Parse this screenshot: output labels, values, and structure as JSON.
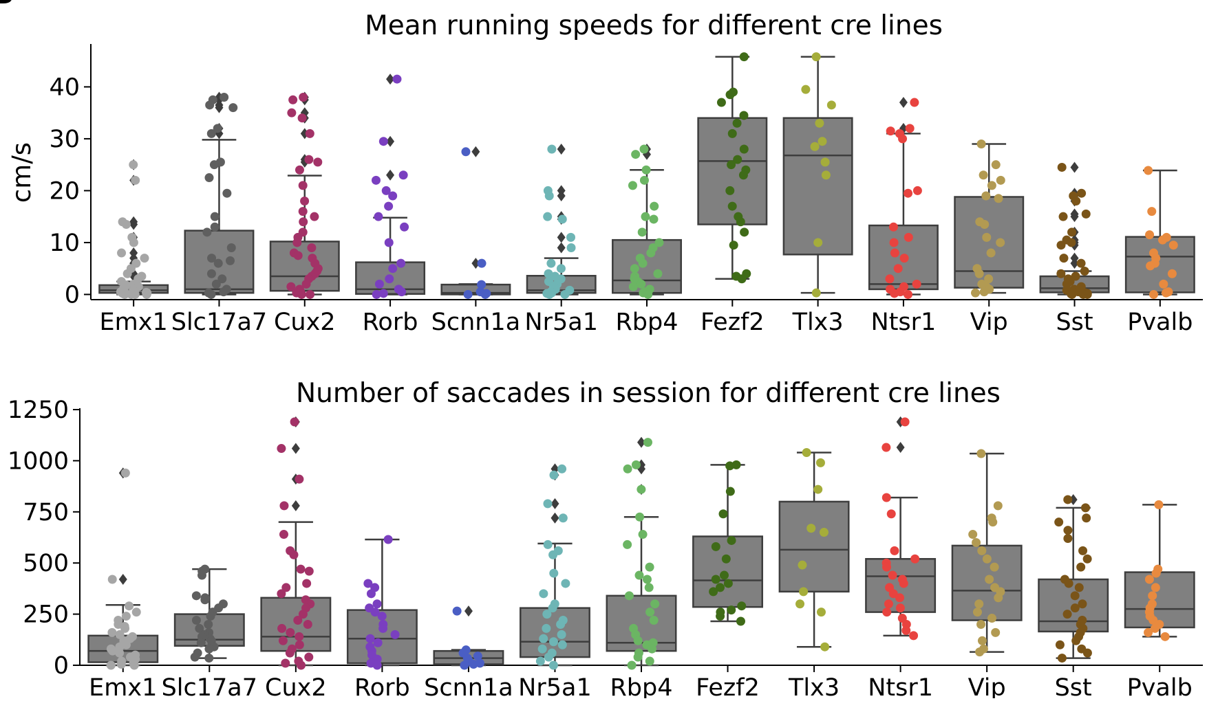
{
  "panel_label": "B",
  "colors": {
    "box_fill": "#808080",
    "box_edge": "#3d3d3d",
    "outlier": "#3d3d3d",
    "points": {
      "Emx1": "#a6a6a6",
      "Slc17a7": "#5f5f5f",
      "Cux2": "#a33267",
      "Rorb": "#7a3fc0",
      "Scnn1a": "#4a5ec4",
      "Nr5a1": "#6eb5b5",
      "Rbp4": "#6bb563",
      "Fezf2": "#3f6b18",
      "Tlx3": "#a5ad3a",
      "Ntsr1": "#e8433f",
      "Vip": "#b29a52",
      "Sst": "#7a5418",
      "Pvalb": "#e88a3f"
    }
  },
  "chart_data": [
    {
      "type": "box",
      "title": "Mean running speeds for different cre lines",
      "xlabel": "",
      "ylabel": "cm/s",
      "ylim": [
        -1,
        48
      ],
      "yticks": [
        0,
        10,
        20,
        30,
        40
      ],
      "categories": [
        "Emx1",
        "Slc17a7",
        "Cux2",
        "Rorb",
        "Scnn1a",
        "Nr5a1",
        "Rbp4",
        "Fezf2",
        "Tlx3",
        "Ntsr1",
        "Vip",
        "Sst",
        "Pvalb"
      ],
      "boxes": [
        {
          "name": "Emx1",
          "whislo": 0,
          "q1": 0.3,
          "med": 0.8,
          "q3": 1.8,
          "whishi": 2.5,
          "fliers": [
            25,
            22,
            14,
            13.5,
            11,
            8,
            7,
            6,
            4,
            3.5
          ],
          "points": [
            25,
            22,
            14,
            13.5,
            11,
            10,
            8,
            7,
            6,
            5,
            4,
            3.5,
            3,
            2.5,
            2,
            1.8,
            1.5,
            1.2,
            1,
            0.8,
            0.6,
            0.5,
            0.4,
            0.3,
            0.2,
            0.1,
            0,
            0,
            0,
            0
          ]
        },
        {
          "name": "Slc17a7",
          "whislo": 0,
          "q1": 0.3,
          "med": 1,
          "q3": 12.3,
          "whishi": 29.8,
          "fliers": [
            38,
            37.5,
            36.5,
            36,
            32,
            31
          ],
          "points": [
            38,
            37.5,
            36.5,
            36,
            32,
            31,
            25.5,
            25,
            22.5,
            19.5,
            15,
            13,
            12,
            9,
            7,
            6.5,
            6,
            4,
            3,
            2,
            1,
            0.5,
            0.3,
            0
          ]
        },
        {
          "name": "Cux2",
          "whislo": 0,
          "q1": 0.7,
          "med": 3.5,
          "q3": 10.2,
          "whishi": 22.9,
          "fliers": [
            38,
            37.5,
            35,
            34,
            31,
            26,
            25.5
          ],
          "points": [
            38,
            37.5,
            35,
            34,
            31,
            26,
            25.5,
            24,
            21,
            18,
            16,
            15,
            14,
            12,
            11,
            10,
            9,
            8,
            7.5,
            7,
            6,
            5,
            4.5,
            4,
            3.5,
            3,
            2,
            1.5,
            1,
            0.5,
            0.3,
            0,
            0
          ]
        },
        {
          "name": "Rorb",
          "whislo": 0,
          "q1": 0.1,
          "med": 1,
          "q3": 6.2,
          "whishi": 14.8,
          "fliers": [
            41.5,
            29.5,
            23
          ],
          "points": [
            41.5,
            29.5,
            23,
            22,
            20,
            19,
            17,
            15,
            13,
            10,
            6,
            5,
            3,
            2,
            1,
            0.5,
            0.2,
            0
          ]
        },
        {
          "name": "Scnn1a",
          "whislo": 0,
          "q1": 0,
          "med": 0.3,
          "q3": 1.9,
          "whishi": 2,
          "fliers": [
            27.5,
            6
          ],
          "points": [
            27.5,
            6,
            1.9,
            0.5,
            0.2,
            0,
            0
          ]
        },
        {
          "name": "Nr5a1",
          "whislo": 0,
          "q1": 0.3,
          "med": 0.8,
          "q3": 3.6,
          "whishi": 7,
          "fliers": [
            28,
            20,
            19,
            15,
            14.5,
            11,
            9
          ],
          "points": [
            28,
            20,
            19,
            15,
            14.5,
            11,
            9,
            6,
            5,
            4,
            3.5,
            3,
            2.5,
            2,
            1.5,
            1,
            0.8,
            0.5,
            0.3,
            0.2,
            0,
            0
          ]
        },
        {
          "name": "Rbp4",
          "whislo": 0,
          "q1": 0.3,
          "med": 2.7,
          "q3": 10.5,
          "whishi": 24,
          "fliers": [
            28,
            27
          ],
          "points": [
            28,
            27,
            24,
            22,
            21,
            17,
            15,
            14.5,
            12,
            10,
            9,
            8,
            7,
            6,
            5,
            4,
            3.5,
            3,
            2.5,
            2,
            1.5,
            1,
            0.5,
            0.3,
            0
          ]
        },
        {
          "name": "Fezf2",
          "whislo": 3,
          "q1": 13.5,
          "med": 25.7,
          "q3": 34,
          "whishi": 45.8,
          "fliers": [],
          "points": [
            45.8,
            39,
            38.5,
            37,
            34.5,
            33,
            31,
            28,
            26,
            25,
            24,
            23,
            20,
            17,
            15,
            14,
            12,
            9.5,
            4,
            3.5,
            3
          ]
        },
        {
          "name": "Tlx3",
          "whislo": 0.3,
          "q1": 7.7,
          "med": 26.8,
          "q3": 34,
          "whishi": 45.8,
          "fliers": [],
          "points": [
            45.8,
            39.5,
            36.5,
            33,
            29.5,
            28.5,
            25.5,
            23,
            10,
            0.3
          ]
        },
        {
          "name": "Ntsr1",
          "whislo": 0,
          "q1": 1,
          "med": 2,
          "q3": 13.3,
          "whishi": 31,
          "fliers": [
            37,
            32
          ],
          "points": [
            37,
            32,
            31.5,
            31,
            30,
            20,
            19.5,
            13,
            11,
            10,
            8,
            7,
            5,
            3,
            2,
            1.5,
            1,
            0.5,
            0.2,
            0
          ]
        },
        {
          "name": "Vip",
          "whislo": 0.3,
          "q1": 1.3,
          "med": 4.5,
          "q3": 18.8,
          "whishi": 29,
          "fliers": [],
          "points": [
            29,
            25,
            23,
            22,
            21,
            19,
            18.5,
            14,
            13.5,
            11,
            10,
            8,
            5,
            4,
            3,
            2,
            1.5,
            1,
            0.5,
            0.3
          ]
        },
        {
          "name": "Sst",
          "whislo": 0,
          "q1": 0.4,
          "med": 1.2,
          "q3": 3.5,
          "whishi": 4.5,
          "fliers": [
            24.5,
            19.5,
            19,
            18,
            15.5,
            15,
            12,
            10.5,
            10,
            9.5,
            7,
            6
          ],
          "points": [
            24.5,
            19.5,
            19,
            18,
            15.5,
            15,
            12,
            10.5,
            10,
            9.5,
            7,
            6,
            4.5,
            4,
            3.5,
            3,
            2.5,
            2,
            1.5,
            1,
            0.8,
            0.5,
            0.3,
            0.2,
            0.1,
            0,
            0,
            0
          ]
        },
        {
          "name": "Pvalb",
          "whislo": 0,
          "q1": 0.4,
          "med": 7.3,
          "q3": 11.1,
          "whishi": 23.9,
          "fliers": [],
          "points": [
            23.9,
            16,
            11.5,
            11,
            10.5,
            9.5,
            8,
            7,
            6,
            5.5,
            4,
            2,
            0.5,
            0.3,
            0
          ]
        }
      ]
    },
    {
      "type": "box",
      "title": "Number of saccades in session for different cre lines",
      "xlabel": "",
      "ylabel": "",
      "ylim": [
        0,
        1250
      ],
      "yticks": [
        0,
        250,
        500,
        750,
        1000,
        1250
      ],
      "categories": [
        "Emx1",
        "Slc17a7",
        "Cux2",
        "Rorb",
        "Scnn1a",
        "Nr5a1",
        "Rbp4",
        "Fezf2",
        "Tlx3",
        "Ntsr1",
        "Vip",
        "Sst",
        "Pvalb"
      ],
      "boxes": [
        {
          "name": "Emx1",
          "whislo": 0,
          "q1": 15,
          "med": 70,
          "q3": 145,
          "whishi": 295,
          "fliers": [
            940,
            420
          ],
          "points": [
            940,
            420,
            290,
            260,
            240,
            220,
            200,
            190,
            180,
            160,
            150,
            140,
            130,
            120,
            110,
            100,
            90,
            80,
            70,
            60,
            50,
            40,
            30,
            20,
            10,
            5,
            0,
            0
          ]
        },
        {
          "name": "Slc17a7",
          "whislo": 35,
          "q1": 95,
          "med": 125,
          "q3": 250,
          "whishi": 470,
          "fliers": [],
          "points": [
            470,
            460,
            440,
            340,
            330,
            320,
            300,
            280,
            260,
            240,
            220,
            200,
            180,
            160,
            150,
            140,
            130,
            120,
            110,
            100,
            90,
            80,
            60,
            40,
            35
          ]
        },
        {
          "name": "Cux2",
          "whislo": 0,
          "q1": 70,
          "med": 140,
          "q3": 330,
          "whishi": 700,
          "fliers": [
            1190,
            1060,
            910,
            780
          ],
          "points": [
            1190,
            1060,
            910,
            780,
            640,
            560,
            540,
            470,
            460,
            400,
            380,
            350,
            320,
            300,
            280,
            250,
            220,
            200,
            180,
            160,
            140,
            120,
            100,
            80,
            60,
            40,
            20,
            10,
            0
          ]
        },
        {
          "name": "Rorb",
          "whislo": 0,
          "q1": 10,
          "med": 130,
          "q3": 270,
          "whishi": 615,
          "fliers": [],
          "points": [
            615,
            400,
            380,
            350,
            300,
            280,
            260,
            240,
            200,
            180,
            150,
            130,
            110,
            90,
            70,
            50,
            30,
            10,
            0
          ]
        },
        {
          "name": "Scnn1a",
          "whislo": 0,
          "q1": 5,
          "med": 35,
          "q3": 70,
          "whishi": 75,
          "fliers": [
            265
          ],
          "points": [
            265,
            75,
            60,
            45,
            35,
            20,
            10,
            5,
            0
          ]
        },
        {
          "name": "Nr5a1",
          "whislo": 0,
          "q1": 40,
          "med": 115,
          "q3": 280,
          "whishi": 595,
          "fliers": [
            960,
            930,
            790,
            720
          ],
          "points": [
            960,
            930,
            790,
            720,
            590,
            560,
            540,
            450,
            400,
            350,
            300,
            280,
            250,
            220,
            200,
            180,
            150,
            130,
            115,
            100,
            80,
            60,
            40,
            20,
            0
          ]
        },
        {
          "name": "Rbp4",
          "whislo": 0,
          "q1": 70,
          "med": 110,
          "q3": 340,
          "whishi": 725,
          "fliers": [
            1090,
            980,
            960,
            860
          ],
          "points": [
            1090,
            980,
            960,
            860,
            725,
            640,
            590,
            480,
            440,
            420,
            380,
            340,
            300,
            260,
            220,
            180,
            150,
            120,
            110,
            100,
            80,
            60,
            40,
            20,
            0
          ]
        },
        {
          "name": "Fezf2",
          "whislo": 215,
          "q1": 285,
          "med": 415,
          "q3": 630,
          "whishi": 980,
          "fliers": [],
          "points": [
            980,
            975,
            850,
            740,
            610,
            580,
            520,
            440,
            420,
            400,
            380,
            360,
            290,
            270,
            260,
            240,
            215
          ]
        },
        {
          "name": "Tlx3",
          "whislo": 90,
          "q1": 360,
          "med": 565,
          "q3": 800,
          "whishi": 1040,
          "fliers": [],
          "points": [
            1040,
            990,
            860,
            670,
            650,
            490,
            360,
            300,
            260,
            90
          ]
        },
        {
          "name": "Ntsr1",
          "whislo": 145,
          "q1": 260,
          "med": 435,
          "q3": 520,
          "whishi": 820,
          "fliers": [
            1190,
            1065
          ],
          "points": [
            1190,
            1065,
            820,
            740,
            560,
            520,
            500,
            480,
            440,
            420,
            400,
            380,
            350,
            330,
            300,
            280,
            260,
            230,
            200,
            170,
            145
          ]
        },
        {
          "name": "Vip",
          "whislo": 65,
          "q1": 220,
          "med": 365,
          "q3": 585,
          "whishi": 1035,
          "fliers": [],
          "points": [
            1035,
            780,
            720,
            700,
            640,
            600,
            560,
            520,
            480,
            420,
            380,
            360,
            330,
            300,
            260,
            230,
            200,
            160,
            120,
            80,
            65
          ]
        },
        {
          "name": "Sst",
          "whislo": 35,
          "q1": 165,
          "med": 215,
          "q3": 420,
          "whishi": 770,
          "fliers": [
            810
          ],
          "points": [
            810,
            770,
            720,
            700,
            660,
            620,
            560,
            520,
            480,
            420,
            400,
            380,
            340,
            300,
            280,
            250,
            220,
            200,
            180,
            160,
            140,
            120,
            100,
            80,
            60,
            35
          ]
        },
        {
          "name": "Pvalb",
          "whislo": 140,
          "q1": 185,
          "med": 275,
          "q3": 455,
          "whishi": 785,
          "fliers": [],
          "points": [
            785,
            470,
            450,
            420,
            380,
            340,
            300,
            280,
            260,
            240,
            220,
            200,
            180,
            160,
            140
          ]
        }
      ]
    }
  ]
}
